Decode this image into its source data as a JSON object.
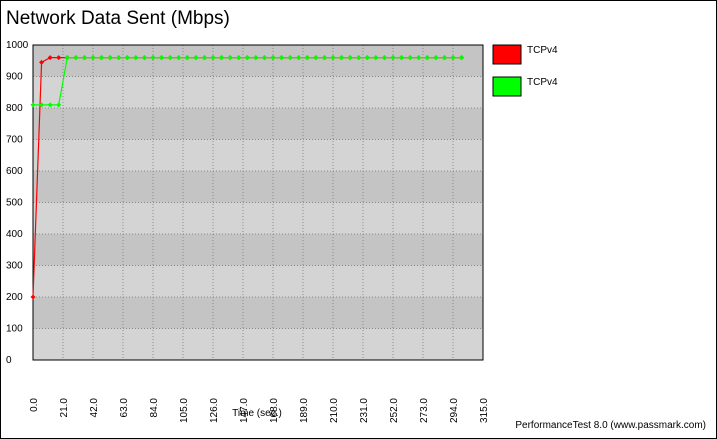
{
  "chart_data": {
    "type": "line",
    "title": "Network Data Sent (Mbps)",
    "xlabel": "Time (sec.)",
    "footer": "PerformanceTest 8.0 (www.passmark.com)",
    "x": [
      0,
      6,
      12,
      18,
      24,
      30,
      36,
      42,
      48,
      54,
      60,
      66,
      72,
      78,
      84,
      90,
      96,
      102,
      108,
      114,
      120,
      126,
      132,
      138,
      144,
      150,
      156,
      162,
      168,
      174,
      180,
      186,
      192,
      198,
      204,
      210,
      216,
      222,
      228,
      234,
      240,
      246,
      252,
      258,
      264,
      270,
      276,
      282,
      288,
      294,
      300
    ],
    "series": [
      {
        "name": "TCPv4",
        "color": "#ff0000",
        "values": [
          200,
          945,
          960,
          960,
          960,
          960,
          960,
          960,
          960,
          960,
          960,
          960,
          960,
          960,
          960,
          960,
          960,
          960,
          960,
          960,
          960,
          960,
          960,
          960,
          960,
          960,
          960,
          960,
          960,
          960,
          960,
          960,
          960,
          960,
          960,
          960,
          960,
          960,
          960,
          960,
          960,
          960,
          960,
          960,
          960,
          960,
          960,
          960,
          960,
          960,
          960
        ]
      },
      {
        "name": "TCPv4",
        "color": "#00ff00",
        "values": [
          810,
          810,
          810,
          810,
          960,
          960,
          960,
          960,
          960,
          960,
          960,
          960,
          960,
          960,
          960,
          960,
          960,
          960,
          960,
          960,
          960,
          960,
          960,
          960,
          960,
          960,
          960,
          960,
          960,
          960,
          960,
          960,
          960,
          960,
          960,
          960,
          960,
          960,
          960,
          960,
          960,
          960,
          960,
          960,
          960,
          960,
          960,
          960,
          960,
          960,
          960
        ]
      }
    ],
    "xlim": [
      0,
      315
    ],
    "xticks": [
      {
        "value": 0,
        "label": "0.0"
      },
      {
        "value": 21,
        "label": "21.0"
      },
      {
        "value": 42,
        "label": "42.0"
      },
      {
        "value": 63,
        "label": "63.0"
      },
      {
        "value": 84,
        "label": "84.0"
      },
      {
        "value": 105,
        "label": "105.0"
      },
      {
        "value": 126,
        "label": "126.0"
      },
      {
        "value": 147,
        "label": "147.0"
      },
      {
        "value": 168,
        "label": "168.0"
      },
      {
        "value": 189,
        "label": "189.0"
      },
      {
        "value": 210,
        "label": "210.0"
      },
      {
        "value": 231,
        "label": "231.0"
      },
      {
        "value": 252,
        "label": "252.0"
      },
      {
        "value": 273,
        "label": "273.0"
      },
      {
        "value": 294,
        "label": "294.0"
      },
      {
        "value": 315,
        "label": "315.0"
      }
    ],
    "ylim": [
      0,
      1000
    ],
    "yticks": [
      0,
      100,
      200,
      300,
      400,
      500,
      600,
      700,
      800,
      900,
      1000
    ],
    "grid": true
  }
}
